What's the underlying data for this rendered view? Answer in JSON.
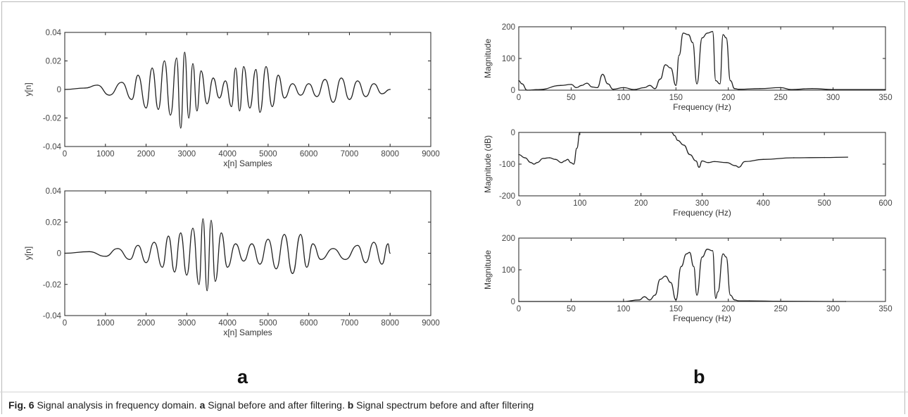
{
  "chart_data": [
    {
      "type": "line",
      "xlabel": "x[n] Samples",
      "ylabel": "y[n]",
      "xlim": [
        0,
        9000
      ],
      "ylim": [
        -0.04,
        0.04
      ],
      "x_ticks": [
        "0",
        "1000",
        "2000",
        "3000",
        "4000",
        "5000",
        "6000",
        "7000",
        "8000",
        "9000"
      ],
      "y_ticks": [
        "-0.04",
        "-0.02",
        "0",
        "0.02",
        "0.04"
      ],
      "series": [
        {
          "x": [
            0,
            500,
            800,
            1100,
            1400,
            1650,
            1800,
            2000,
            2150,
            2300,
            2450,
            2600,
            2750,
            2850,
            2950,
            3050,
            3150,
            3250,
            3350,
            3500,
            3650,
            3800,
            3950,
            4100,
            4200,
            4300,
            4400,
            4550,
            4700,
            4800,
            4950,
            5100,
            5250,
            5400,
            5600,
            5800,
            6000,
            6200,
            6400,
            6600,
            6800,
            7000,
            7200,
            7400,
            7600,
            7800,
            8000
          ],
          "y": [
            0,
            0.001,
            0.003,
            -0.004,
            0.005,
            -0.007,
            0.01,
            -0.013,
            0.015,
            -0.014,
            0.02,
            -0.018,
            0.022,
            -0.027,
            0.026,
            -0.02,
            0.018,
            -0.015,
            0.013,
            -0.01,
            0.008,
            -0.006,
            0.006,
            -0.012,
            0.015,
            -0.015,
            0.016,
            -0.013,
            0.014,
            -0.016,
            0.016,
            -0.012,
            0.01,
            -0.006,
            0.004,
            -0.004,
            0.004,
            -0.005,
            0.007,
            -0.009,
            0.008,
            -0.007,
            0.006,
            -0.005,
            0.004,
            -0.003,
            0.0
          ]
        }
      ]
    },
    {
      "type": "line",
      "xlabel": "x[n] Samples",
      "ylabel": "y[n]",
      "xlim": [
        0,
        9000
      ],
      "ylim": [
        -0.04,
        0.04
      ],
      "x_ticks": [
        "0",
        "1000",
        "2000",
        "3000",
        "4000",
        "5000",
        "6000",
        "7000",
        "8000",
        "9000"
      ],
      "y_ticks": [
        "-0.04",
        "-0.02",
        "0",
        "0.02",
        "0.04"
      ],
      "series": [
        {
          "x": [
            0,
            600,
            1000,
            1300,
            1600,
            1800,
            2000,
            2200,
            2400,
            2550,
            2700,
            2850,
            3000,
            3150,
            3300,
            3400,
            3500,
            3600,
            3700,
            3850,
            4000,
            4200,
            4400,
            4600,
            4800,
            5000,
            5200,
            5400,
            5600,
            5800,
            5950,
            6100,
            6300,
            6600,
            6900,
            7200,
            7400,
            7600,
            7800,
            7950,
            8000
          ],
          "y": [
            0,
            0.001,
            -0.002,
            0.003,
            -0.004,
            0.005,
            -0.006,
            0.007,
            -0.009,
            0.011,
            -0.012,
            0.013,
            -0.014,
            0.016,
            -0.02,
            0.022,
            -0.024,
            0.021,
            -0.018,
            0.013,
            -0.009,
            0.006,
            -0.005,
            0.006,
            -0.007,
            0.009,
            -0.01,
            0.012,
            -0.013,
            0.012,
            -0.009,
            0.006,
            -0.004,
            0.003,
            -0.004,
            0.005,
            -0.006,
            0.007,
            -0.007,
            0.006,
            0.0
          ]
        }
      ]
    },
    {
      "type": "line",
      "xlabel": "Frequency (Hz)",
      "ylabel": "Magnitude",
      "xlim": [
        0,
        350
      ],
      "ylim": [
        0,
        200
      ],
      "x_ticks": [
        "0",
        "50",
        "100",
        "150",
        "200",
        "250",
        "300",
        "350"
      ],
      "y_ticks": [
        "0",
        "100",
        "200"
      ],
      "series": [
        {
          "x": [
            0,
            3,
            8,
            20,
            40,
            50,
            55,
            60,
            65,
            70,
            75,
            80,
            85,
            90,
            100,
            110,
            120,
            125,
            130,
            135,
            140,
            145,
            150,
            153,
            157,
            162,
            166,
            170,
            175,
            180,
            185,
            188,
            192,
            195,
            198,
            202,
            206,
            210,
            230,
            250,
            260,
            280,
            300,
            350
          ],
          "y": [
            30,
            20,
            0,
            2,
            15,
            18,
            8,
            15,
            22,
            10,
            8,
            50,
            20,
            3,
            8,
            2,
            8,
            15,
            5,
            35,
            80,
            70,
            15,
            110,
            180,
            175,
            150,
            20,
            165,
            180,
            185,
            30,
            20,
            175,
            165,
            30,
            5,
            3,
            5,
            8,
            2,
            5,
            2,
            2
          ]
        }
      ]
    },
    {
      "type": "line",
      "xlabel": "Frequency (Hz)",
      "ylabel": "Magnitude (dB)",
      "xlim": [
        0,
        600
      ],
      "ylim": [
        -200,
        0
      ],
      "x_ticks": [
        "0",
        "100",
        "200",
        "300",
        "400",
        "500",
        "600"
      ],
      "y_ticks": [
        "-200",
        "-100",
        "0"
      ],
      "series": [
        {
          "x": [
            0,
            10,
            20,
            25,
            30,
            40,
            50,
            60,
            70,
            75,
            80,
            85,
            90,
            95,
            100,
            250,
            255,
            260,
            270,
            280,
            290,
            295,
            300,
            310,
            320,
            340,
            355,
            360,
            370,
            400,
            450,
            500,
            538
          ],
          "y": [
            -70,
            -80,
            -95,
            -100,
            -95,
            -82,
            -80,
            -85,
            -95,
            -90,
            -85,
            -95,
            -100,
            -50,
            0,
            0,
            -10,
            -25,
            -40,
            -70,
            -90,
            -110,
            -90,
            -95,
            -92,
            -95,
            -105,
            -110,
            -92,
            -85,
            -80,
            -79,
            -78
          ]
        }
      ]
    },
    {
      "type": "line",
      "xlabel": "Frequency (Hz)",
      "ylabel": "Magnitude",
      "xlim": [
        0,
        350
      ],
      "ylim": [
        0,
        200
      ],
      "x_ticks": [
        "0",
        "50",
        "100",
        "150",
        "200",
        "250",
        "300",
        "350"
      ],
      "y_ticks": [
        "0",
        "100",
        "200"
      ],
      "series": [
        {
          "x": [
            0,
            100,
            115,
            120,
            125,
            130,
            135,
            140,
            145,
            150,
            155,
            160,
            163,
            167,
            170,
            175,
            180,
            185,
            188,
            190,
            195,
            198,
            202,
            206,
            210,
            220,
            250,
            300,
            312
          ],
          "y": [
            0,
            0,
            5,
            15,
            5,
            20,
            70,
            80,
            60,
            5,
            110,
            150,
            155,
            110,
            20,
            140,
            165,
            160,
            10,
            30,
            150,
            140,
            20,
            5,
            2,
            2,
            1,
            0,
            0
          ]
        }
      ]
    }
  ],
  "panel_labels": {
    "a": "a",
    "b": "b"
  },
  "caption": {
    "fig": "Fig. 6",
    "lead": " Signal analysis in frequency domain. ",
    "a": "a",
    "a_text": " Signal before and after filtering. ",
    "b": "b",
    "b_text": " Signal spectrum before and after filtering"
  }
}
